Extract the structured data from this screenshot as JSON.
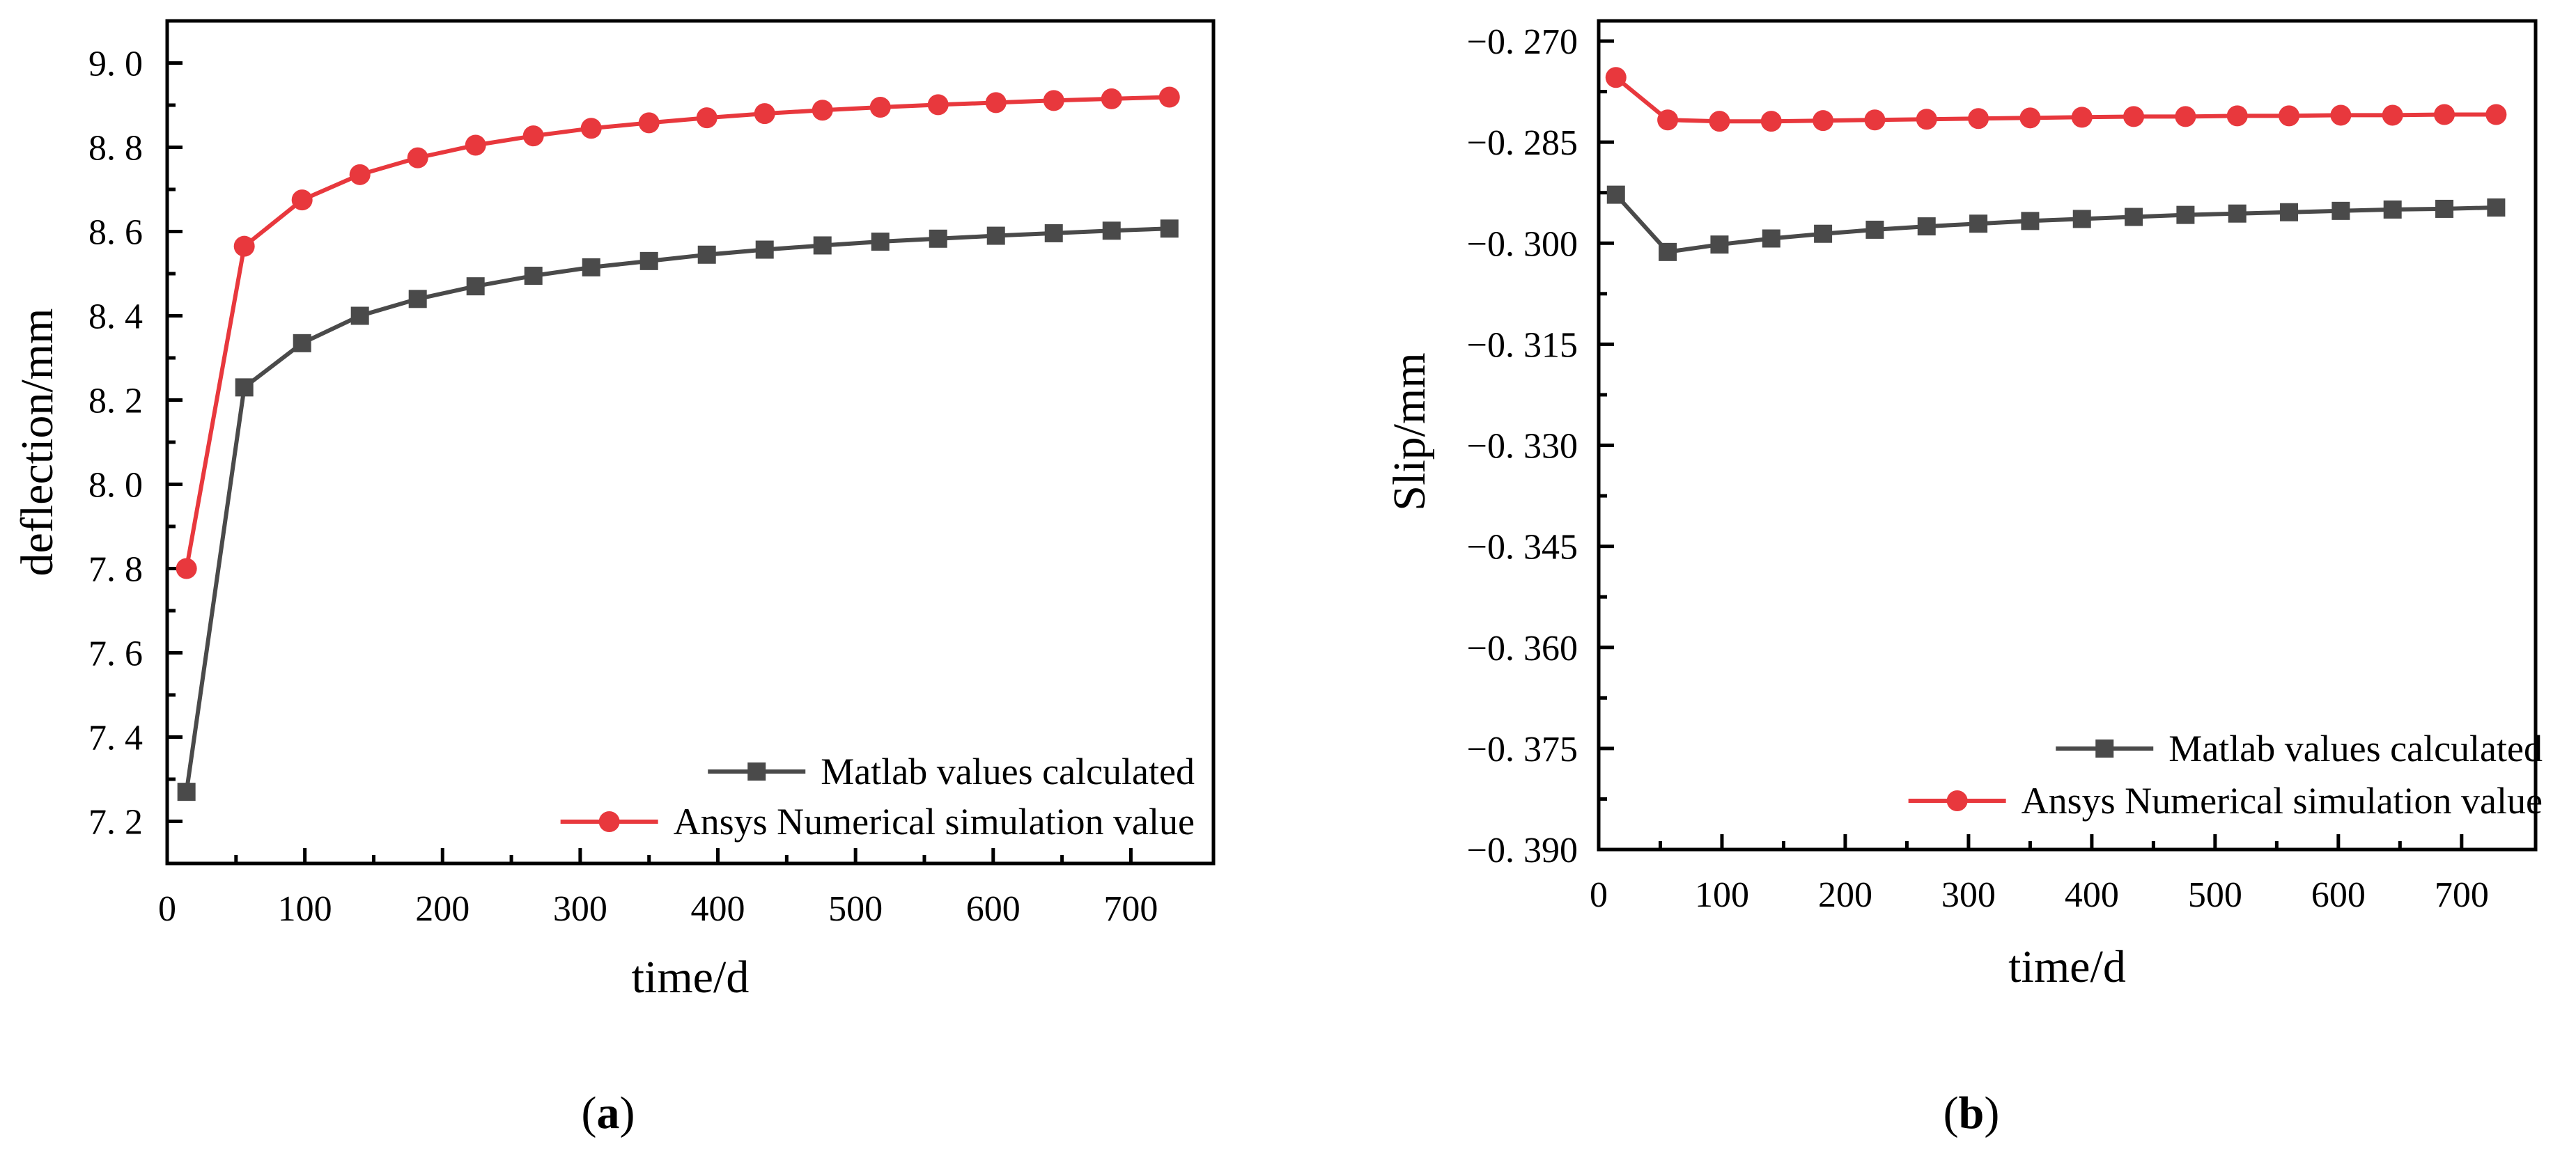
{
  "chart_data": [
    {
      "type": "line",
      "panel": "a",
      "panel_label": "a",
      "xlabel": "time/d",
      "ylabel": "deflection/mm",
      "xlim": [
        0,
        760
      ],
      "ylim": [
        7.1,
        9.1
      ],
      "x_ticks": [
        0,
        100,
        200,
        300,
        400,
        500,
        600,
        700
      ],
      "x_tick_labels": [
        "0",
        "100",
        "200",
        "300",
        "400",
        "500",
        "600",
        "700"
      ],
      "y_ticks": [
        7.2,
        7.4,
        7.6,
        7.8,
        8.0,
        8.2,
        8.4,
        8.6,
        8.8,
        9.0
      ],
      "y_tick_labels": [
        "7. 2",
        "7. 4",
        "7. 6",
        "7. 8",
        "8. 0",
        "8. 2",
        "8. 4",
        "8. 6",
        "8. 8",
        "9. 0"
      ],
      "legend_position": "bottom-right",
      "x": [
        14,
        56,
        98,
        140,
        182,
        224,
        266,
        308,
        350,
        392,
        434,
        476,
        518,
        560,
        602,
        644,
        686,
        728
      ],
      "series": [
        {
          "name": "Matlab values calculated",
          "color": "#4a4a4a",
          "marker": "square",
          "values": [
            7.27,
            8.23,
            8.335,
            8.4,
            8.44,
            8.47,
            8.495,
            8.515,
            8.53,
            8.545,
            8.557,
            8.567,
            8.576,
            8.583,
            8.59,
            8.596,
            8.602,
            8.607
          ]
        },
        {
          "name": "Ansys Numerical simulation value",
          "color": "#e8383d",
          "marker": "circle",
          "values": [
            7.8,
            8.565,
            8.675,
            8.735,
            8.775,
            8.805,
            8.827,
            8.845,
            8.858,
            8.87,
            8.88,
            8.888,
            8.895,
            8.901,
            8.906,
            8.911,
            8.915,
            8.919
          ]
        }
      ]
    },
    {
      "type": "line",
      "panel": "b",
      "panel_label": "b",
      "xlabel": "time/d",
      "ylabel": "Slip/mm",
      "xlim": [
        0,
        760
      ],
      "ylim": [
        -0.39,
        -0.267
      ],
      "x_ticks": [
        0,
        100,
        200,
        300,
        400,
        500,
        600,
        700
      ],
      "x_tick_labels": [
        "0",
        "100",
        "200",
        "300",
        "400",
        "500",
        "600",
        "700"
      ],
      "y_ticks": [
        -0.39,
        -0.375,
        -0.36,
        -0.345,
        -0.33,
        -0.315,
        -0.3,
        -0.285,
        -0.27
      ],
      "y_tick_labels": [
        "−0. 390",
        "−0. 375",
        "−0. 360",
        "−0. 345",
        "−0. 330",
        "−0. 315",
        "−0. 300",
        "−0. 285",
        "−0. 270"
      ],
      "legend_position": "bottom-right",
      "x": [
        14,
        56,
        98,
        140,
        182,
        224,
        266,
        308,
        350,
        392,
        434,
        476,
        518,
        560,
        602,
        644,
        686,
        728
      ],
      "series": [
        {
          "name": "Matlab values calculated",
          "color": "#4a4a4a",
          "marker": "square",
          "values": [
            -0.2928,
            -0.3013,
            -0.3002,
            -0.2993,
            -0.2986,
            -0.298,
            -0.2975,
            -0.2971,
            -0.2967,
            -0.2964,
            -0.2961,
            -0.2958,
            -0.2956,
            -0.2954,
            -0.2952,
            -0.295,
            -0.2949,
            -0.2947
          ]
        },
        {
          "name": "Ansys Numerical simulation value",
          "color": "#e8383d",
          "marker": "circle",
          "values": [
            -0.2754,
            -0.2817,
            -0.2819,
            -0.2819,
            -0.2818,
            -0.2817,
            -0.2816,
            -0.2815,
            -0.2814,
            -0.2813,
            -0.2812,
            -0.2812,
            -0.2811,
            -0.2811,
            -0.281,
            -0.281,
            -0.2809,
            -0.2809
          ]
        }
      ]
    }
  ]
}
